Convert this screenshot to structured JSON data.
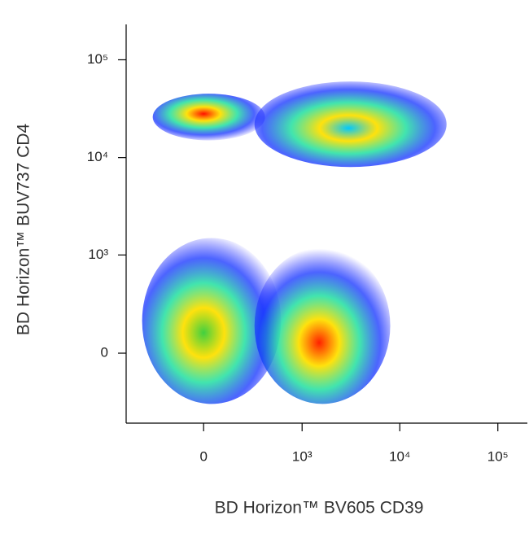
{
  "chart_data": {
    "type": "density",
    "scale": "biexponential",
    "xlabel": "BD Horizon™ BV605 CD39",
    "ylabel": "BD Horizon™ BUV737 CD4",
    "xlim": [
      -600,
      200000
    ],
    "ylim": [
      -500,
      230000
    ],
    "xticks": [
      0,
      {
        "value": 1000,
        "label": "10³"
      },
      {
        "value": 10000,
        "label": "10⁴"
      },
      {
        "value": 100000,
        "label": "10⁵"
      }
    ],
    "yticks": [
      0,
      {
        "value": 1000,
        "label": "10³"
      },
      {
        "value": 10000,
        "label": "10⁴"
      },
      {
        "value": 100000,
        "label": "10⁵"
      }
    ],
    "populations": [
      {
        "x": 3000,
        "y": 20000,
        "xrange": [
          300,
          30000
        ],
        "yrange": [
          8000,
          60000
        ],
        "color": "#00c8ff"
      },
      {
        "x": 0,
        "y": 100,
        "xrange": [
          -400,
          600
        ],
        "yrange": [
          -300,
          1500
        ],
        "color": "#40d040"
      },
      {
        "x": 1500,
        "y": 50,
        "xrange": [
          300,
          8000
        ],
        "yrange": [
          -300,
          1200
        ],
        "color": "#ff2000"
      },
      {
        "x": 0,
        "y": 28000,
        "xrange": [
          -300,
          400
        ],
        "yrange": [
          15000,
          45000
        ],
        "color": "#ff1000"
      }
    ]
  }
}
